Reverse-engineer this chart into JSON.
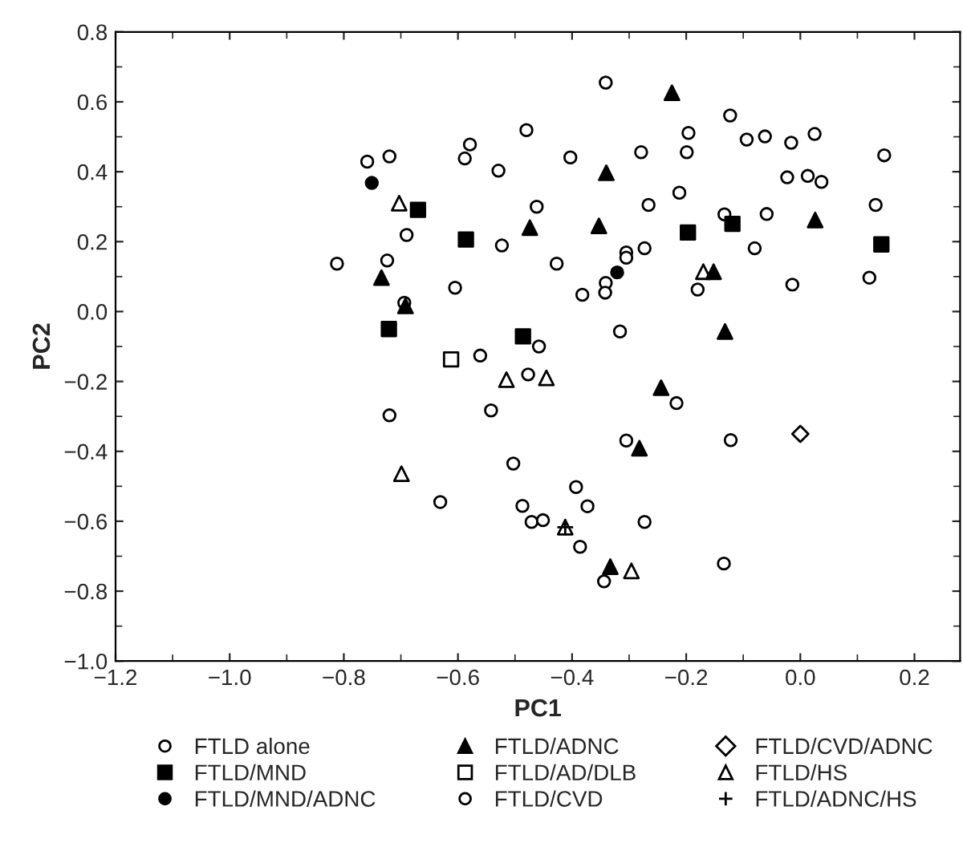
{
  "chart_data": {
    "type": "scatter",
    "xlabel": "PC1",
    "ylabel": "PC2",
    "xlim": [
      -1.2,
      0.28
    ],
    "ylim": [
      -1.0,
      0.8
    ],
    "xticks": [
      {
        "value": -1.2,
        "label": "−1.2"
      },
      {
        "value": -1.0,
        "label": "−1.0"
      },
      {
        "value": -0.8,
        "label": "−0.8"
      },
      {
        "value": -0.6,
        "label": "−0.6"
      },
      {
        "value": -0.4,
        "label": "−0.4"
      },
      {
        "value": -0.2,
        "label": "−0.2"
      },
      {
        "value": 0.0,
        "label": "0.0"
      },
      0.2
    ],
    "yticks": [
      {
        "value": -1.0,
        "label": "−1.0"
      },
      {
        "value": -0.8,
        "label": "−0.8"
      },
      {
        "value": -0.6,
        "label": "−0.6"
      },
      {
        "value": -0.4,
        "label": "−0.4"
      },
      {
        "value": -0.2,
        "label": "−0.2"
      },
      {
        "value": 0.0,
        "label": "0.0"
      },
      0.2,
      0.4,
      0.6,
      0.8
    ],
    "grid": false,
    "legend": "bottom",
    "series": [
      {
        "name": "FTLD alone",
        "color": "#ffffff",
        "marker": "circle",
        "x": [
          -0.759,
          -0.72,
          -0.588,
          -0.579,
          -0.529,
          -0.48,
          -0.69,
          -0.724,
          -0.812,
          -0.523,
          -0.605,
          -0.694,
          -0.341,
          -0.123,
          -0.196,
          -0.199,
          -0.279,
          -0.403,
          -0.094,
          -0.062,
          -0.016,
          0.025,
          0.147,
          -0.023,
          0.013,
          0.037,
          -0.212,
          -0.462,
          -0.266,
          0.132,
          -0.133,
          -0.059,
          -0.273,
          -0.305,
          -0.305,
          -0.08,
          -0.427,
          -0.341,
          -0.342,
          -0.382,
          -0.18,
          -0.014,
          0.121,
          -0.316,
          -0.561,
          -0.458,
          -0.477,
          -0.72,
          -0.542,
          -0.503,
          -0.631,
          -0.487,
          -0.471,
          -0.451,
          -0.217,
          -0.305,
          -0.122,
          -0.393,
          -0.373,
          -0.273,
          -0.386,
          -0.344,
          -0.134
        ],
        "values": [
          0.429,
          0.444,
          0.438,
          0.478,
          0.403,
          0.519,
          0.219,
          0.146,
          0.137,
          0.189,
          0.068,
          0.025,
          0.655,
          0.561,
          0.511,
          0.456,
          0.456,
          0.441,
          0.492,
          0.501,
          0.483,
          0.508,
          0.447,
          0.384,
          0.388,
          0.371,
          0.34,
          0.3,
          0.305,
          0.305,
          0.278,
          0.279,
          0.181,
          0.169,
          0.154,
          0.181,
          0.137,
          0.082,
          0.054,
          0.048,
          0.063,
          0.077,
          0.097,
          -0.057,
          -0.126,
          -0.1,
          -0.18,
          -0.297,
          -0.283,
          -0.435,
          -0.545,
          -0.556,
          -0.602,
          -0.597,
          -0.262,
          -0.369,
          -0.368,
          -0.502,
          -0.557,
          -0.602,
          -0.673,
          -0.772,
          -0.721
        ]
      },
      {
        "name": "FTLD/MND",
        "color": "#000000",
        "marker": "square",
        "x": [
          -0.67,
          -0.586,
          -0.721,
          -0.486,
          -0.197,
          -0.119,
          0.142
        ],
        "values": [
          0.291,
          0.206,
          -0.05,
          -0.071,
          0.226,
          0.251,
          0.192
        ]
      },
      {
        "name": "FTLD/MND/ADNC",
        "color": "#000000",
        "marker": "circle",
        "x": [
          -0.751,
          -0.321
        ],
        "values": [
          0.368,
          0.112
        ]
      },
      {
        "name": "FTLD/ADNC",
        "color": "#000000",
        "marker": "triangle",
        "x": [
          -0.734,
          -0.692,
          -0.474,
          -0.225,
          -0.34,
          -0.353,
          0.026,
          -0.152,
          -0.132,
          -0.244,
          -0.282,
          -0.333
        ],
        "values": [
          0.097,
          0.016,
          0.24,
          0.626,
          0.397,
          0.245,
          0.262,
          0.114,
          -0.057,
          -0.218,
          -0.391,
          -0.73
        ]
      },
      {
        "name": "FTLD/AD/DLB",
        "color": "#ffffff",
        "marker": "square",
        "x": [
          -0.612
        ],
        "values": [
          -0.137
        ]
      },
      {
        "name": "FTLD/CVD",
        "color": "#ffffff",
        "marker": "circle"
      },
      {
        "name": "FTLD/CVD/ADNC",
        "color": "#ffffff",
        "marker": "diamond",
        "x": [
          0.0
        ],
        "values": [
          -0.35
        ]
      },
      {
        "name": "FTLD/HS",
        "color": "#ffffff",
        "marker": "triangle",
        "x": [
          -0.703,
          -0.17,
          -0.515,
          -0.699,
          -0.445,
          -0.412,
          -0.296
        ],
        "values": [
          0.31,
          0.114,
          -0.195,
          -0.464,
          -0.19,
          -0.617,
          -0.742
        ]
      },
      {
        "name": "FTLD/ADNC/HS",
        "color": "#000000",
        "marker": "cross",
        "x": [
          -0.412
        ],
        "values": [
          -0.617
        ]
      }
    ]
  }
}
